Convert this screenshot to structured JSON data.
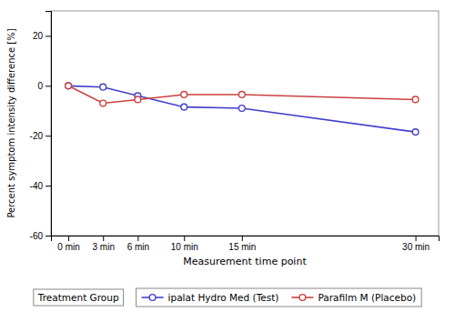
{
  "chart_data": {
    "type": "line",
    "x": [
      0,
      3,
      6,
      10,
      15,
      30
    ],
    "xlim": [
      -1.5,
      32
    ],
    "xticks": [
      {
        "value": 0,
        "label": "0 min"
      },
      {
        "value": 3,
        "label": "3 min"
      },
      {
        "value": 6,
        "label": "6 min"
      },
      {
        "value": 10,
        "label": "10 min"
      },
      {
        "value": 15,
        "label": "15 min"
      },
      {
        "value": 30,
        "label": "30 min"
      }
    ],
    "ylim": [
      -60,
      30
    ],
    "yticks": [
      -60,
      -40,
      -20,
      0,
      20
    ],
    "x_label": "Measurement time point",
    "y_label": "Percent symptom intensity difference [%]",
    "series": [
      {
        "name": "ipalat Hydro Med (Test)",
        "color": "#4040cc",
        "marker": "circle",
        "values": [
          0,
          -0.5,
          -4.0,
          -8.5,
          -9.0,
          -18.5
        ]
      },
      {
        "name": "Parafilm M (Placebo)",
        "color": "#cc4040",
        "marker": "circle",
        "values": [
          0,
          -7.0,
          -5.5,
          -3.5,
          -3.5,
          -5.5
        ]
      }
    ],
    "annotations": [
      "Treatment Group"
    ],
    "legend": "bottom",
    "grid": false
  }
}
